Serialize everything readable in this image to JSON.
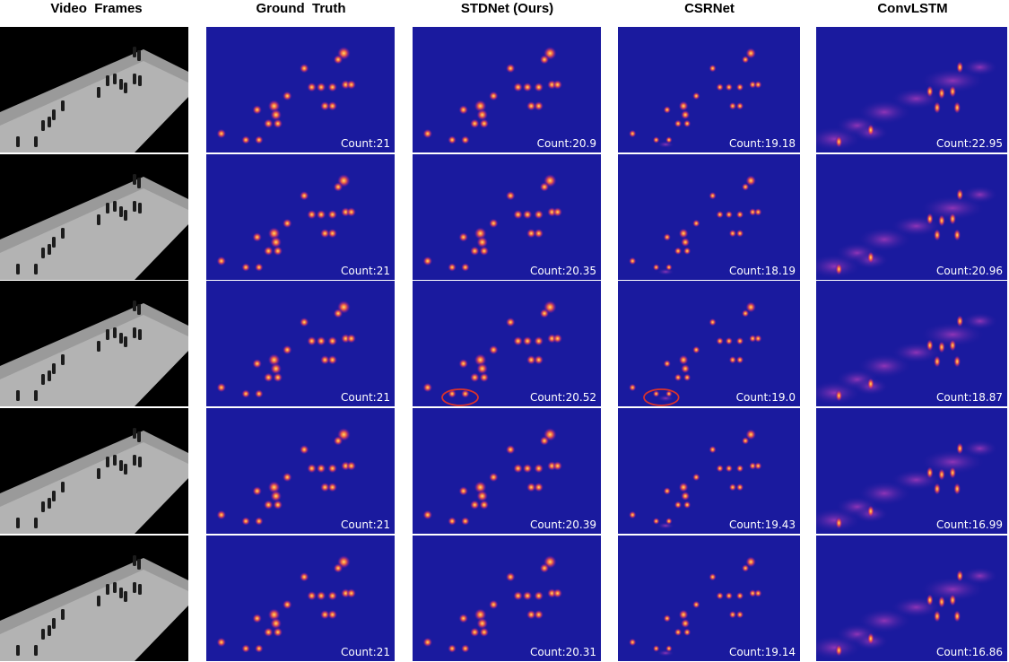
{
  "headers": [
    "Video  Frames",
    "Ground  Truth",
    "STDNet (Ours)",
    "CSRNet",
    "ConvLSTM"
  ],
  "rows": [
    {
      "counts": [
        "Count:21",
        "Count:20.9",
        "Count:19.18",
        "Count:22.95"
      ]
    },
    {
      "counts": [
        "Count:21",
        "Count:20.35",
        "Count:18.19",
        "Count:20.96"
      ]
    },
    {
      "counts": [
        "Count:21",
        "Count:20.52",
        "Count:19.0",
        "Count:18.87"
      ]
    },
    {
      "counts": [
        "Count:21",
        "Count:20.39",
        "Count:19.43",
        "Count:16.99"
      ]
    },
    {
      "counts": [
        "Count:21",
        "Count:20.31",
        "Count:19.14",
        "Count:16.86"
      ]
    }
  ],
  "colors": {
    "map_background": "#1a1a9e",
    "blob_core": "#ffe066",
    "blob_mid": "#ff6a3d",
    "blob_edge": "#a0208a",
    "highlight_circle": "#d8322c"
  }
}
